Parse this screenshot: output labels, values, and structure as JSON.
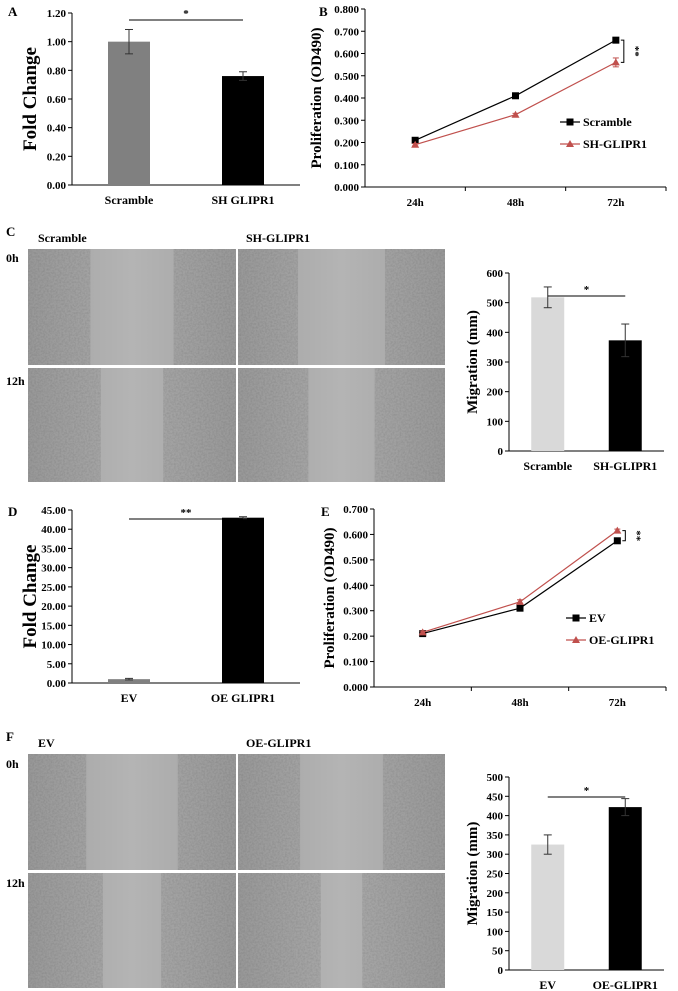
{
  "panels": {
    "A": {
      "letter": "A",
      "chart_data": {
        "type": "bar",
        "categories": [
          "Scramble",
          "SH GLIPR1"
        ],
        "values": [
          1.0,
          0.76
        ],
        "errors": [
          0.085,
          0.03
        ],
        "bar_colors": [
          "#808080",
          "#000000"
        ],
        "ylabel": "Fold Change",
        "ylim": [
          0,
          1.2
        ],
        "yticks": [
          "0.00",
          "0.20",
          "0.40",
          "0.60",
          "0.80",
          "1.00",
          "1.20"
        ],
        "significance": "*"
      }
    },
    "B": {
      "letter": "B",
      "chart_data": {
        "type": "line",
        "categories": [
          "24h",
          "48h",
          "72h"
        ],
        "series": [
          {
            "name": "Scramble",
            "values": [
              0.21,
              0.41,
              0.66
            ],
            "errors": [
              0.005,
              0.007,
              0.008
            ],
            "color": "#000000",
            "marker": "square"
          },
          {
            "name": "SH-GLIPR1",
            "values": [
              0.19,
              0.325,
              0.56
            ],
            "errors": [
              0.005,
              0.006,
              0.02
            ],
            "color": "#c0504d",
            "marker": "triangle"
          }
        ],
        "ylabel": "Proliferation (OD490)",
        "ylim": [
          0,
          0.8
        ],
        "yticks": [
          "0.000",
          "0.100",
          "0.200",
          "0.300",
          "0.400",
          "0.500",
          "0.600",
          "0.700",
          "0.800"
        ],
        "significance": "**",
        "legend": "right"
      }
    },
    "C": {
      "letter": "C",
      "images": {
        "col_labels": [
          "Scramble",
          "SH-GLIPR1"
        ],
        "row_labels": [
          "0h",
          "12h"
        ]
      },
      "chart_data": {
        "type": "bar",
        "categories": [
          "Scramble",
          "SH-GLIPR1"
        ],
        "values": [
          518,
          373
        ],
        "errors": [
          35,
          55
        ],
        "bar_colors": [
          "#d9d9d9",
          "#000000"
        ],
        "ylabel": "Migration (mm)",
        "ylim": [
          0,
          600
        ],
        "yticks": [
          "0",
          "100",
          "200",
          "300",
          "400",
          "500",
          "600"
        ],
        "significance": "*"
      }
    },
    "D": {
      "letter": "D",
      "chart_data": {
        "type": "bar",
        "categories": [
          "EV",
          "OE GLIPR1"
        ],
        "values": [
          1.0,
          43.0
        ],
        "errors": [
          0.2,
          0.25
        ],
        "bar_colors": [
          "#808080",
          "#000000"
        ],
        "ylabel": "Fold Change",
        "ylim": [
          0,
          45
        ],
        "yticks": [
          "0.00",
          "5.00",
          "10.00",
          "15.00",
          "20.00",
          "25.00",
          "30.00",
          "35.00",
          "40.00",
          "45.00"
        ],
        "significance": "**"
      }
    },
    "E": {
      "letter": "E",
      "chart_data": {
        "type": "line",
        "categories": [
          "24h",
          "48h",
          "72h"
        ],
        "series": [
          {
            "name": "EV",
            "values": [
              0.21,
              0.31,
              0.575
            ],
            "errors": [
              0.005,
              0.006,
              0.01
            ],
            "color": "#000000",
            "marker": "square"
          },
          {
            "name": "OE-GLIPR1",
            "values": [
              0.215,
              0.335,
              0.615
            ],
            "errors": [
              0.005,
              0.008,
              0.006
            ],
            "color": "#c0504d",
            "marker": "triangle"
          }
        ],
        "ylabel": "Proliferation (OD490)",
        "ylim": [
          0,
          0.7
        ],
        "yticks": [
          "0.000",
          "0.100",
          "0.200",
          "0.300",
          "0.400",
          "0.500",
          "0.600",
          "0.700"
        ],
        "significance": "**",
        "legend": "right"
      }
    },
    "F": {
      "letter": "F",
      "images": {
        "col_labels": [
          "EV",
          "OE-GLIPR1"
        ],
        "row_labels": [
          "0h",
          "12h"
        ]
      },
      "chart_data": {
        "type": "bar",
        "categories": [
          "EV",
          "OE-GLIPR1"
        ],
        "values": [
          325,
          422
        ],
        "errors": [
          25,
          22
        ],
        "bar_colors": [
          "#d9d9d9",
          "#000000"
        ],
        "ylabel": "Migration (mm)",
        "ylim": [
          0,
          500
        ],
        "yticks": [
          "0",
          "50",
          "100",
          "150",
          "200",
          "250",
          "300",
          "350",
          "400",
          "450",
          "500"
        ],
        "significance": "*"
      }
    }
  }
}
